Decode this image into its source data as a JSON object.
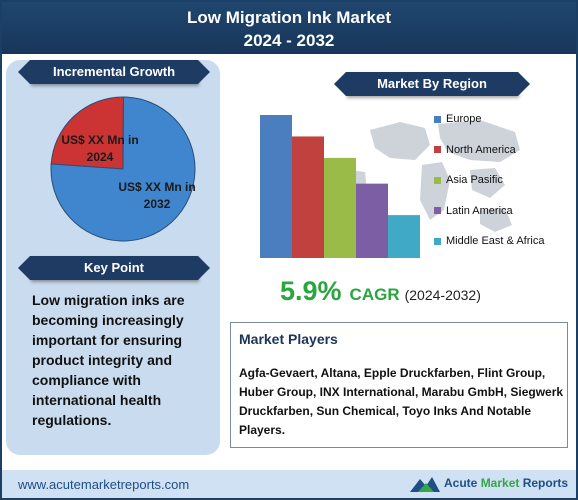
{
  "header": {
    "title_line1": "Low Migration Ink Market",
    "title_line2": "2024 - 2032"
  },
  "incremental_growth": {
    "heading": "Incremental Growth",
    "pie": {
      "type": "pie",
      "slices": [
        {
          "label_line1": "US$ XX Mn in",
          "label_line2": "2024",
          "value": 24,
          "color": "#cc3333"
        },
        {
          "label_line1": "US$ XX Mn in",
          "label_line2": "2032",
          "value": 76,
          "color": "#3f86cf"
        }
      ]
    }
  },
  "key_point": {
    "heading": "Key Point",
    "text": "Low migration inks are becoming increasingly important for ensuring product integrity and compliance with international health regulations."
  },
  "market_by_region": {
    "heading": "Market By Region"
  },
  "chart_data": {
    "type": "bar",
    "categories": [
      "Europe",
      "North America",
      "Asia Pasific",
      "Latin America",
      "Middle East & Africa"
    ],
    "values": [
      100,
      85,
      70,
      52,
      30
    ],
    "colors": [
      "#4a7ebf",
      "#c0413d",
      "#9bbb48",
      "#7b5ea3",
      "#40aac6"
    ],
    "ylim": [
      0,
      100
    ],
    "legend_position": "right",
    "grid": false
  },
  "cagr": {
    "value": "5.9%",
    "label": "CAGR",
    "period": "(2024-2032)"
  },
  "market_players": {
    "heading": "Market Players",
    "text": "Agfa-Gevaert, Altana, Epple Druckfarben, Flint Group, Huber Group, INX International, Marabu GmbH, Siegwerk Druckfarben, Sun Chemical, Toyo Inks And Notable Players."
  },
  "footer": {
    "url": "www.acutemarketreports.com",
    "brand_word1": "Acute",
    "brand_word2": "Market",
    "brand_word3": "Reports"
  }
}
